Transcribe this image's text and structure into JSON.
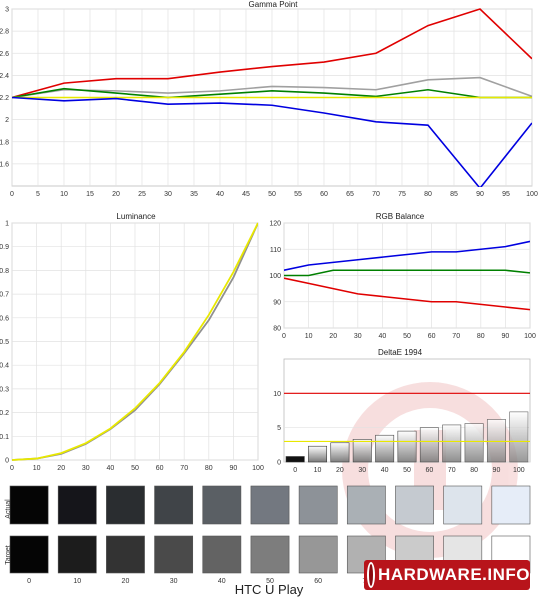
{
  "title": "HTC U Play",
  "brand": "HARDWARE.INFO",
  "chart_data": [
    {
      "type": "line",
      "title": "Gamma Point",
      "x": [
        0,
        10,
        20,
        30,
        40,
        50,
        60,
        70,
        80,
        90,
        100
      ],
      "xticks": [
        0,
        5,
        10,
        15,
        20,
        25,
        30,
        35,
        40,
        45,
        50,
        55,
        60,
        65,
        70,
        75,
        80,
        85,
        90,
        95,
        100
      ],
      "yticks": [
        1.6,
        1.8,
        2,
        2.2,
        2.4,
        2.6,
        2.8,
        3
      ],
      "ylim": [
        1.4,
        3
      ],
      "xlim": [
        0,
        100
      ],
      "grid": true,
      "series": [
        {
          "color": "#e00000",
          "values": [
            2.2,
            2.33,
            2.37,
            2.37,
            2.43,
            2.48,
            2.52,
            2.6,
            2.85,
            3.0,
            2.55
          ]
        },
        {
          "color": "#a0a0a0",
          "values": [
            2.2,
            2.27,
            2.26,
            2.24,
            2.26,
            2.3,
            2.29,
            2.27,
            2.36,
            2.38,
            2.21
          ]
        },
        {
          "color": "#008000",
          "values": [
            2.2,
            2.28,
            2.24,
            2.2,
            2.23,
            2.26,
            2.24,
            2.21,
            2.27,
            2.2,
            2.2
          ]
        },
        {
          "color": "#e8e800",
          "values": [
            2.2,
            2.2,
            2.2,
            2.2,
            2.2,
            2.2,
            2.2,
            2.2,
            2.2,
            2.2,
            2.2
          ]
        },
        {
          "color": "#0000e0",
          "values": [
            2.2,
            2.17,
            2.19,
            2.14,
            2.15,
            2.13,
            2.06,
            1.98,
            1.95,
            1.38,
            1.97
          ]
        }
      ]
    },
    {
      "type": "line",
      "title": "Luminance",
      "x": [
        0,
        10,
        20,
        30,
        40,
        50,
        60,
        70,
        80,
        90,
        100
      ],
      "xticks": [
        0,
        10,
        20,
        30,
        40,
        50,
        60,
        70,
        80,
        90,
        100
      ],
      "yticks": [
        0,
        0.1,
        0.2,
        0.3,
        0.4,
        0.5,
        0.6,
        0.7,
        0.8,
        0.9,
        1
      ],
      "ylim": [
        0,
        1
      ],
      "xlim": [
        0,
        100
      ],
      "grid": true,
      "series": [
        {
          "color": "#909090",
          "values": [
            0,
            0.006,
            0.026,
            0.068,
            0.13,
            0.21,
            0.32,
            0.45,
            0.59,
            0.77,
            1.0
          ]
        },
        {
          "color": "#e8e800",
          "values": [
            0,
            0.006,
            0.029,
            0.071,
            0.133,
            0.218,
            0.325,
            0.456,
            0.612,
            0.793,
            1.0
          ]
        }
      ]
    },
    {
      "type": "line",
      "title": "RGB Balance",
      "x": [
        0,
        10,
        20,
        30,
        40,
        50,
        60,
        70,
        80,
        90,
        100
      ],
      "xticks": [
        0,
        10,
        20,
        30,
        40,
        50,
        60,
        70,
        80,
        90,
        100
      ],
      "yticks": [
        80,
        90,
        100,
        110,
        120
      ],
      "ylim": [
        80,
        120
      ],
      "xlim": [
        0,
        100
      ],
      "grid": true,
      "series": [
        {
          "color": "#0000e0",
          "values": [
            102,
            104,
            105,
            106,
            107,
            108,
            109,
            109,
            110,
            111,
            113
          ]
        },
        {
          "color": "#008000",
          "values": [
            100,
            100,
            102,
            102,
            102,
            102,
            102,
            102,
            102,
            102,
            101
          ]
        },
        {
          "color": "#e00000",
          "values": [
            99,
            97,
            95,
            93,
            92,
            91,
            90,
            90,
            89,
            88,
            87
          ]
        }
      ]
    },
    {
      "type": "bar",
      "title": "DeltaE 1994",
      "categories": [
        "0",
        "10",
        "20",
        "30",
        "40",
        "50",
        "60",
        "70",
        "80",
        "90",
        "100"
      ],
      "values": [
        0.8,
        2.3,
        2.8,
        3.3,
        3.9,
        4.5,
        5.0,
        5.4,
        5.6,
        6.2,
        7.3
      ],
      "yticks": [
        0,
        5,
        10
      ],
      "ylim": [
        0,
        15
      ],
      "grid": true,
      "reference_lines": [
        {
          "value": 10,
          "color": "#e00000"
        },
        {
          "value": 3,
          "color": "#e8e800"
        }
      ]
    }
  ],
  "swatches": {
    "row_labels": [
      "Actual",
      "Target"
    ],
    "labels": [
      "0",
      "10",
      "20",
      "30",
      "40",
      "50",
      "60",
      "70",
      "80",
      "90",
      "100"
    ],
    "actual": [
      "#050505",
      "#15151a",
      "#2a2d30",
      "#404448",
      "#5a5f64",
      "#737880",
      "#8d9298",
      "#aab0b5",
      "#c5cad0",
      "#dde4ec",
      "#e6edf8"
    ],
    "target": [
      "#050505",
      "#1c1c1c",
      "#333333",
      "#4a4a4a",
      "#636363",
      "#7d7d7d",
      "#979797",
      "#b1b1b1",
      "#cbcbcb",
      "#e5e5e5",
      "#ffffff"
    ]
  }
}
